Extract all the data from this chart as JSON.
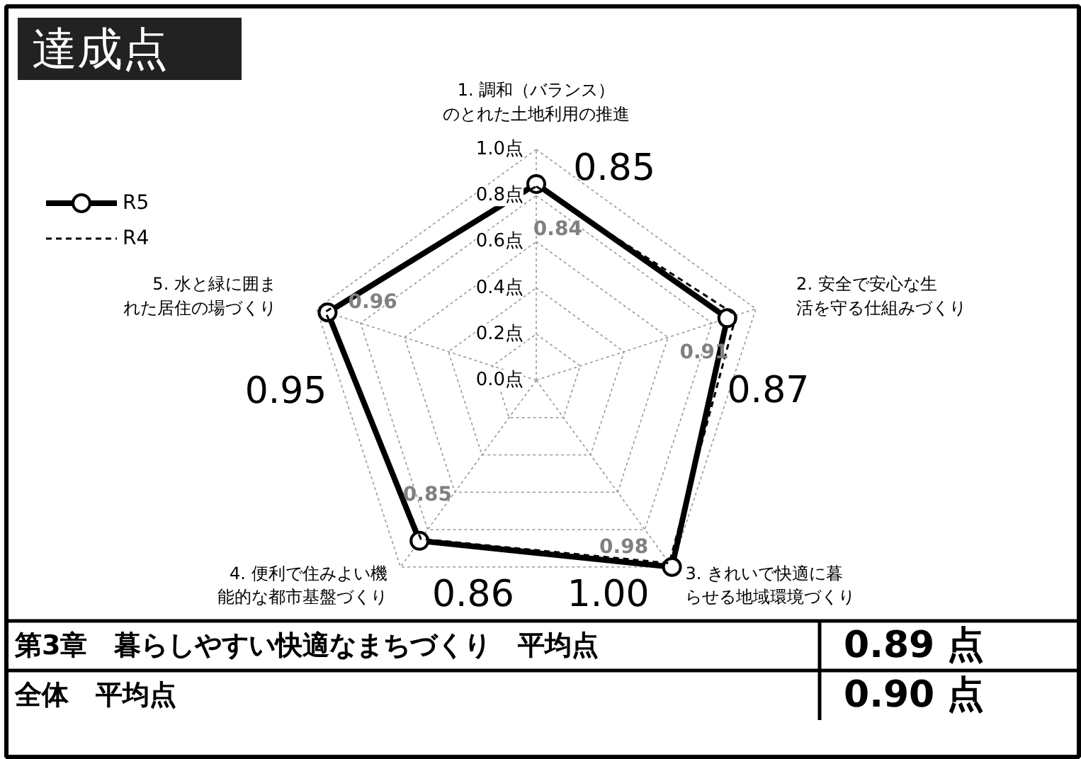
{
  "chart_data": {
    "type": "radar",
    "title": "達成点",
    "categories": [
      "1. 調和（バランス）のとれた土地利用の推進",
      "2. 安全で安心な生活を守る仕組みづくり",
      "3. きれいで快適に暮らせる地域環境づくり",
      "4. 便利で住みよい機能的な都市基盤づくり",
      "5. 水と緑に囲まれた居住の場づくり"
    ],
    "series": [
      {
        "name": "R5",
        "color": "#000000",
        "marker": "circle",
        "line_style": "solid",
        "values": [
          0.85,
          0.87,
          1.0,
          0.86,
          0.95
        ],
        "value_labels": [
          "0.85",
          "0.87",
          "1.00",
          "0.86",
          "0.95"
        ]
      },
      {
        "name": "R4",
        "color": "#000000",
        "marker": "none",
        "line_style": "dashed",
        "values": [
          0.84,
          0.91,
          0.98,
          0.85,
          0.96
        ],
        "value_labels": [
          "0.84",
          "0.91",
          "0.98",
          "0.85",
          "0.96"
        ]
      }
    ],
    "ylim": [
      0,
      1
    ],
    "yticks": [
      {
        "value": 0,
        "label": "0.0点"
      },
      {
        "value": 0.2,
        "label": "0.2点"
      },
      {
        "value": 0.4,
        "label": "0.4点"
      },
      {
        "value": 0.6,
        "label": "0.6点"
      },
      {
        "value": 0.8,
        "label": "0.8点"
      },
      {
        "value": 1.0,
        "label": "1.0点"
      }
    ],
    "grid": true,
    "legend": "top left",
    "annotations": [
      "第3章　暮らしやすい快適なまちづくり　平均点",
      "0.89 点",
      "全体　平均点",
      "0.90 点"
    ]
  }
}
